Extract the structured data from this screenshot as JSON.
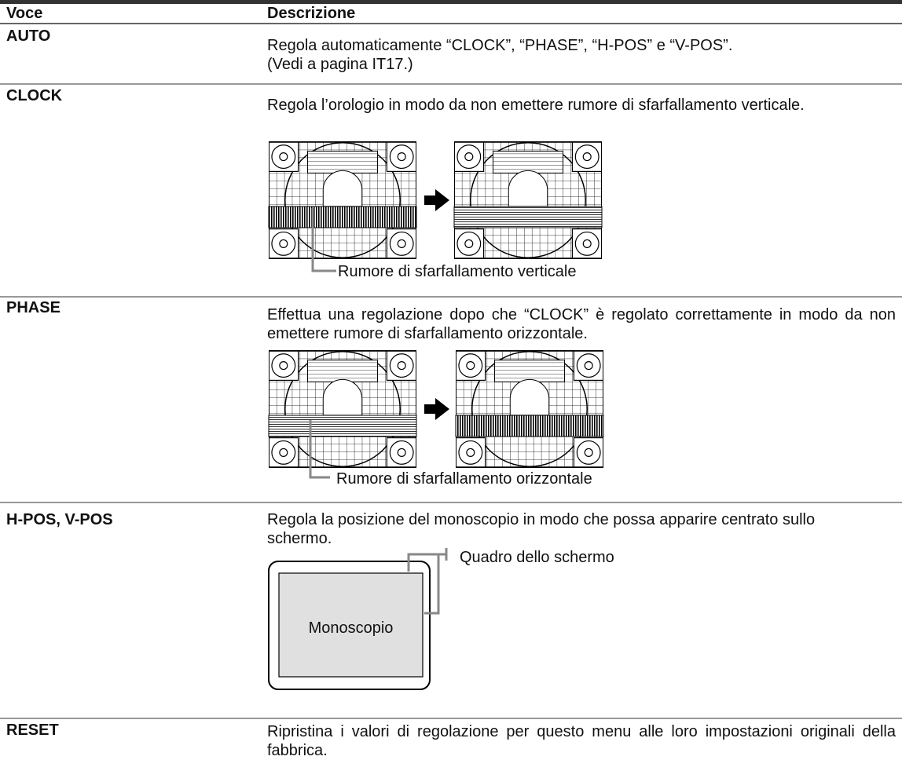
{
  "header": {
    "item": "Voce",
    "description": "Descrizione"
  },
  "rows": [
    {
      "item": "AUTO",
      "description": "Regola automaticamente “CLOCK”, “PHASE”, “H-POS” e “V-POS”.",
      "note": "(Vedi a pagina IT17.)"
    },
    {
      "item": "CLOCK",
      "description": "Regola l’orologio in modo da non emettere rumore di sfarfallamento verticale.",
      "caption": "Rumore di sfarfallamento verticale"
    },
    {
      "item": "PHASE",
      "description": "Effettua una regolazione dopo che “CLOCK” è regolato correttamente in modo da non emettere rumore di sfarfallamento orizzontale.",
      "caption": "Rumore di sfarfallamento orizzontale"
    },
    {
      "item": "H-POS, V-POS",
      "description": "Regola la posizione del monoscopio in modo che possa apparire centrato sullo schermo.",
      "frame_label": "Quadro dello schermo",
      "pattern_label": "Monoscopio"
    },
    {
      "item": "RESET",
      "description": "Ripristina i valori di regolazione per questo menu alle loro impostazioni originali della fabbrica."
    }
  ]
}
